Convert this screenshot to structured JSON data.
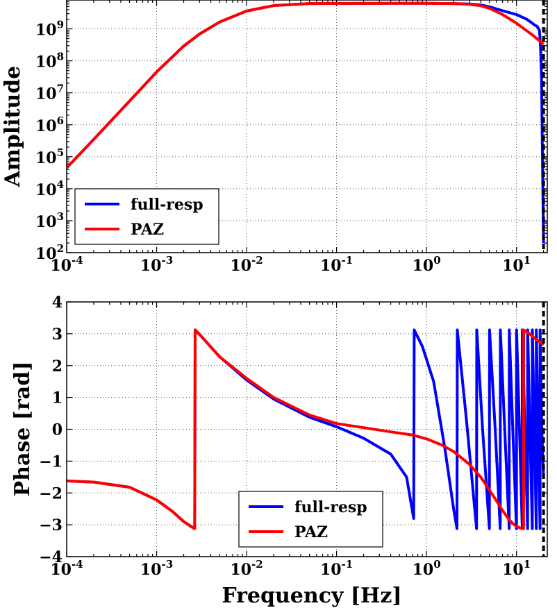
{
  "chart_data": [
    {
      "type": "line",
      "id": "amplitude",
      "xlabel": "",
      "ylabel": "Amplitude",
      "x_scale": "log",
      "y_scale": "log",
      "xlim": [
        0.0001,
        22
      ],
      "ylim": [
        100,
        8000000000
      ],
      "x_ticks": [
        {
          "base": "10",
          "exp": "-4",
          "value": 0.0001
        },
        {
          "base": "10",
          "exp": "-3",
          "value": 0.001
        },
        {
          "base": "10",
          "exp": "-2",
          "value": 0.01
        },
        {
          "base": "10",
          "exp": "-1",
          "value": 0.1
        },
        {
          "base": "10",
          "exp": "0",
          "value": 1
        },
        {
          "base": "10",
          "exp": "1",
          "value": 10
        }
      ],
      "y_ticks": [
        {
          "base": "10",
          "exp": "2",
          "value": 100
        },
        {
          "base": "10",
          "exp": "3",
          "value": 1000
        },
        {
          "base": "10",
          "exp": "4",
          "value": 10000
        },
        {
          "base": "10",
          "exp": "5",
          "value": 100000
        },
        {
          "base": "10",
          "exp": "6",
          "value": 1000000
        },
        {
          "base": "10",
          "exp": "7",
          "value": 10000000
        },
        {
          "base": "10",
          "exp": "8",
          "value": 100000000
        },
        {
          "base": "10",
          "exp": "9",
          "value": 1000000000
        }
      ],
      "grid": true,
      "legend_position": "lower-left",
      "vline": {
        "x": 20,
        "style": "dashed",
        "color": "#000000"
      },
      "series": [
        {
          "name": "full-resp",
          "color": "#0000ff",
          "x": [
            0.0001,
            0.0002,
            0.0005,
            0.001,
            0.002,
            0.003,
            0.005,
            0.01,
            0.02,
            0.05,
            0.1,
            0.5,
            1,
            2,
            3,
            4,
            5,
            7,
            10,
            13,
            15,
            16,
            17,
            18,
            18.5,
            19,
            19.5,
            20
          ],
          "y": [
            45000,
            350000,
            5500000,
            45000000,
            290000000,
            690000000,
            1630000000,
            3620000000,
            5350000000,
            6180000000,
            6270000000,
            6300000000,
            6300000000,
            6200000000,
            6000000000,
            5600000000,
            4900000000,
            3700000000,
            2800000000,
            2000000000,
            1500000000,
            1300000000,
            1200000000,
            900000000,
            300000000,
            30000000,
            50000,
            200
          ]
        },
        {
          "name": "PAZ",
          "color": "#ff0000",
          "x": [
            0.0001,
            0.0002,
            0.0005,
            0.001,
            0.002,
            0.003,
            0.005,
            0.01,
            0.02,
            0.05,
            0.1,
            0.5,
            1,
            2,
            3,
            4,
            5,
            7,
            10,
            15,
            20
          ],
          "y": [
            45000,
            350000,
            5500000,
            45000000,
            290000000,
            690000000,
            1630000000,
            3620000000,
            5350000000,
            6180000000,
            6270000000,
            6300000000,
            6300000000,
            6200000000,
            5900000000,
            5300000000,
            4400000000,
            2800000000,
            1500000000,
            650000000,
            330000000
          ]
        }
      ]
    },
    {
      "type": "line",
      "id": "phase",
      "xlabel": "Frequency [Hz]",
      "ylabel": "Phase [rad]",
      "x_scale": "log",
      "y_scale": "linear",
      "xlim": [
        0.0001,
        22
      ],
      "ylim": [
        -4,
        4
      ],
      "x_ticks": [
        {
          "base": "10",
          "exp": "-4",
          "value": 0.0001
        },
        {
          "base": "10",
          "exp": "-3",
          "value": 0.001
        },
        {
          "base": "10",
          "exp": "-2",
          "value": 0.01
        },
        {
          "base": "10",
          "exp": "-1",
          "value": 0.1
        },
        {
          "base": "10",
          "exp": "0",
          "value": 1
        },
        {
          "base": "10",
          "exp": "1",
          "value": 10
        }
      ],
      "y_ticks": [
        {
          "label": "−4",
          "value": -4
        },
        {
          "label": "−3",
          "value": -3
        },
        {
          "label": "−2",
          "value": -2
        },
        {
          "label": "−1",
          "value": -1
        },
        {
          "label": "0",
          "value": 0
        },
        {
          "label": "1",
          "value": 1
        },
        {
          "label": "2",
          "value": 2
        },
        {
          "label": "3",
          "value": 3
        },
        {
          "label": "4",
          "value": 4
        }
      ],
      "grid": true,
      "legend_position": "lower-center",
      "vline": {
        "x": 20,
        "style": "dashed",
        "color": "#000000"
      },
      "series": [
        {
          "name": "full-resp",
          "color": "#0000ff",
          "x": [
            0.0001,
            0.0002,
            0.0005,
            0.001,
            0.0015,
            0.002,
            0.0025,
            0.00265,
            0.00268,
            0.003,
            0.005,
            0.01,
            0.02,
            0.05,
            0.1,
            0.2,
            0.4,
            0.6,
            0.72,
            0.73,
            0.9,
            1.2,
            1.6,
            2.0,
            2.18,
            2.2,
            2.8,
            3.6,
            3.62,
            4.2,
            5.0,
            5.02,
            5.8,
            6.6,
            6.62,
            7.4,
            8.3,
            8.32,
            9.1,
            10.0,
            10.02,
            10.8,
            11.6,
            11.62,
            12.4,
            13.3,
            13.32,
            14.1,
            15.0,
            15.02,
            15.8,
            16.6,
            16.62,
            17.4,
            18.3,
            18.32,
            19.1,
            20
          ],
          "y": [
            -1.62,
            -1.66,
            -1.82,
            -2.22,
            -2.58,
            -2.9,
            -3.08,
            -3.12,
            3.12,
            2.98,
            2.28,
            1.55,
            0.95,
            0.38,
            0.08,
            -0.28,
            -0.78,
            -1.5,
            -2.8,
            3.12,
            2.6,
            1.5,
            -0.6,
            -2.5,
            -3.12,
            3.12,
            0.2,
            -3.12,
            3.12,
            0.0,
            -3.12,
            3.12,
            0.0,
            -3.12,
            3.12,
            0.0,
            -3.12,
            3.12,
            0.0,
            -3.12,
            3.12,
            0.0,
            -3.12,
            3.12,
            0.0,
            -3.12,
            3.12,
            0.0,
            -3.12,
            3.12,
            0.0,
            -3.12,
            3.12,
            0.0,
            -3.12,
            3.12,
            0.0,
            -1.5
          ]
        },
        {
          "name": "PAZ",
          "color": "#ff0000",
          "x": [
            0.0001,
            0.0002,
            0.0005,
            0.001,
            0.0015,
            0.002,
            0.0025,
            0.00265,
            0.00268,
            0.003,
            0.005,
            0.01,
            0.02,
            0.05,
            0.1,
            0.2,
            0.4,
            0.7,
            1.0,
            1.5,
            2.0,
            3.0,
            4.0,
            5.0,
            6.0,
            7.0,
            8.0,
            9.0,
            10.0,
            11.0,
            11.8,
            12.0,
            12.02,
            14.0,
            16.0,
            18.0,
            20.0
          ],
          "y": [
            -1.62,
            -1.66,
            -1.82,
            -2.22,
            -2.58,
            -2.9,
            -3.08,
            -3.12,
            3.12,
            2.98,
            2.28,
            1.6,
            1.0,
            0.45,
            0.18,
            0.05,
            -0.08,
            -0.18,
            -0.3,
            -0.5,
            -0.7,
            -1.1,
            -1.5,
            -1.9,
            -2.25,
            -2.55,
            -2.78,
            -2.95,
            -3.05,
            -3.1,
            -3.12,
            -3.12,
            3.12,
            3.0,
            2.85,
            2.75,
            2.65
          ]
        }
      ]
    }
  ]
}
